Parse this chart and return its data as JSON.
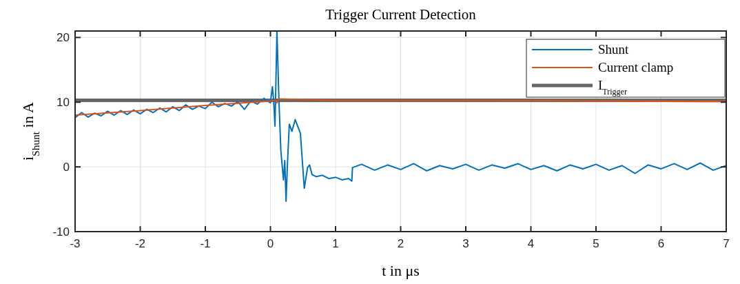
{
  "chart_data": {
    "type": "line",
    "title": "Trigger Current Detection",
    "xlabel": "t in μs",
    "ylabel": "i$_{Shunt}$ in A",
    "xlim": [
      -3,
      7
    ],
    "xticks": [
      -3,
      -2,
      -1,
      0,
      1,
      2,
      3,
      4,
      5,
      6,
      7
    ],
    "ylim": [
      -10,
      21
    ],
    "yticks": [
      -10,
      0,
      10,
      20
    ],
    "grid": true,
    "legend": "top right",
    "series": [
      {
        "name": "Shunt",
        "color": "#0072bd",
        "x": [
          -3,
          -2.9,
          -2.8,
          -2.7,
          -2.6,
          -2.5,
          -2.4,
          -2.3,
          -2.2,
          -2.1,
          -2.0,
          -1.9,
          -1.8,
          -1.7,
          -1.6,
          -1.5,
          -1.4,
          -1.3,
          -1.2,
          -1.1,
          -1.0,
          -0.9,
          -0.8,
          -0.7,
          -0.6,
          -0.5,
          -0.4,
          -0.3,
          -0.2,
          -0.1,
          0,
          0.03,
          0.05,
          0.07,
          0.1,
          0.13,
          0.16,
          0.2,
          0.22,
          0.24,
          0.26,
          0.29,
          0.33,
          0.38,
          0.43,
          0.46,
          0.5,
          0.52,
          0.57,
          0.6,
          0.64,
          0.7,
          0.8,
          0.9,
          1.0,
          1.1,
          1.2,
          1.25,
          1.26,
          1.4,
          1.6,
          1.8,
          2.0,
          2.2,
          2.4,
          2.6,
          2.8,
          3.0,
          3.2,
          3.4,
          3.6,
          3.8,
          4.0,
          4.2,
          4.4,
          4.6,
          4.8,
          5.0,
          5.2,
          5.4,
          5.6,
          5.8,
          6.0,
          6.2,
          6.4,
          6.6,
          6.8,
          7.0
        ],
        "values": [
          7.6,
          8.4,
          7.7,
          8.3,
          7.9,
          8.6,
          8.0,
          8.7,
          8.1,
          8.8,
          8.2,
          8.9,
          8.4,
          9.1,
          8.5,
          9.3,
          8.7,
          9.6,
          8.9,
          9.4,
          9.0,
          10.0,
          9.3,
          9.8,
          9.4,
          10.1,
          8.9,
          10.2,
          9.7,
          10.6,
          9.9,
          12.4,
          10.2,
          6.3,
          21,
          10.5,
          2.5,
          -2,
          1.0,
          -5.3,
          0.2,
          6.6,
          5.5,
          7.3,
          6.0,
          5.2,
          -0.5,
          -3.3,
          -0.1,
          0.3,
          -1.2,
          -1.5,
          -1.3,
          -1.8,
          -1.6,
          -2.0,
          -1.8,
          -2.2,
          -0.1,
          0.4,
          -0.5,
          0.3,
          -0.4,
          0.5,
          -0.6,
          0.2,
          -0.3,
          0.4,
          -0.5,
          0.3,
          -0.2,
          0.5,
          -0.4,
          0.2,
          -0.6,
          0.3,
          -0.3,
          0.4,
          -0.5,
          0.2,
          -1.0,
          0.3,
          -0.3,
          0.5,
          -0.4,
          0.6,
          -0.5,
          0.2
        ]
      },
      {
        "name": "Current clamp",
        "color": "#d95319",
        "x": [
          -3,
          -2,
          -1,
          0,
          0.08,
          0.1,
          0.13,
          1,
          3,
          5,
          7
        ],
        "values": [
          8.0,
          8.7,
          9.5,
          10.2,
          10.3,
          9.9,
          10.5,
          10.3,
          10.3,
          10.2,
          10.1
        ]
      },
      {
        "name": "I$_{Trigger}$",
        "color": "#666666",
        "x": [
          -3,
          7
        ],
        "values": [
          10.3,
          10.3
        ]
      }
    ]
  }
}
